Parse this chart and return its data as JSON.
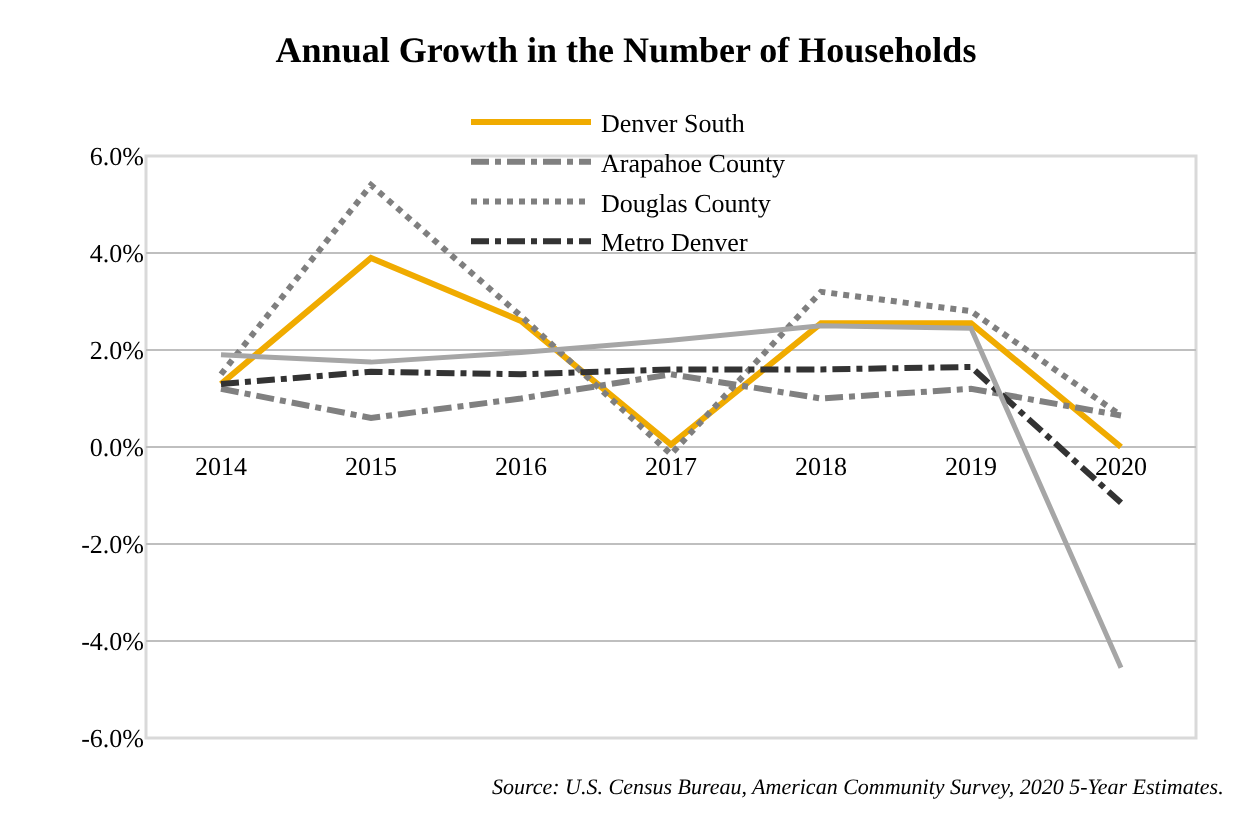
{
  "chart_data": {
    "type": "line",
    "title": "Annual Growth in the Number of Households",
    "categories": [
      "2014",
      "2015",
      "2016",
      "2017",
      "2018",
      "2019",
      "2020"
    ],
    "series": [
      {
        "name": "Denver South",
        "color": "#f0ab00",
        "line_style": "solid",
        "values": [
          1.3,
          3.9,
          2.6,
          0.05,
          2.55,
          2.55,
          0.0
        ]
      },
      {
        "name": "Arapahoe County",
        "color": "#808080",
        "line_style": "dashdot",
        "values": [
          1.2,
          0.6,
          1.0,
          1.5,
          1.0,
          1.2,
          0.65
        ]
      },
      {
        "name": "Douglas County",
        "color": "#7f7f7f",
        "line_style": "dotted",
        "values": [
          1.5,
          5.4,
          2.7,
          -0.15,
          3.2,
          2.8,
          0.65
        ]
      },
      {
        "name": "Metro Denver",
        "color": "#333333",
        "line_style": "dashdot",
        "values": [
          1.3,
          1.55,
          1.5,
          1.6,
          1.6,
          1.65,
          -1.15
        ]
      },
      {
        "color": "#a6a6a6",
        "line_style": "solid",
        "values": [
          1.9,
          1.75,
          1.95,
          2.2,
          2.5,
          2.45,
          -4.55
        ]
      }
    ],
    "ylim": [
      -6,
      6
    ],
    "yticks": [
      {
        "value": -6,
        "label": "-6.0%"
      },
      {
        "value": -4,
        "label": "-4.0%"
      },
      {
        "value": -2,
        "label": "-2.0%"
      },
      {
        "value": 0,
        "label": "0.0%"
      },
      {
        "value": 2,
        "label": "2.0%"
      },
      {
        "value": 4,
        "label": "4.0%"
      },
      {
        "value": 6,
        "label": "6.0%"
      }
    ],
    "grid": "y",
    "legend": "top",
    "marker": "none",
    "annotations": [
      "Source: U.S. Census Bureau, American Community Survey, 2020 5-Year Estimates."
    ]
  }
}
